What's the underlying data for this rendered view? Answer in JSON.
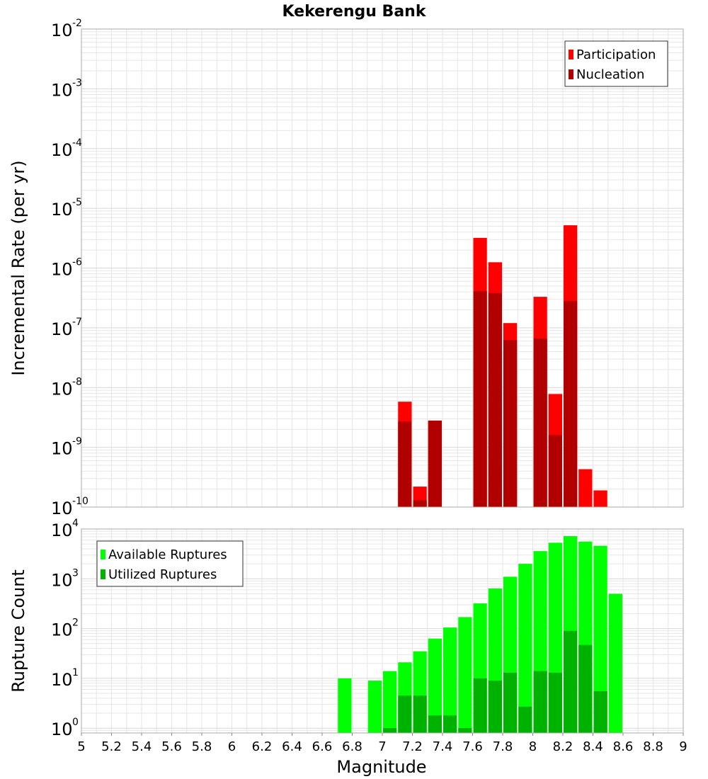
{
  "title": "Kekerengu Bank",
  "colors": {
    "participation": "#ff0000",
    "nucleation": "#b20000",
    "available": "#00ff00",
    "utilized": "#00b200",
    "grid": "#e6e6e6",
    "plot_border": "#aaaaaa"
  },
  "chart_data": [
    {
      "type": "bar",
      "panel": "top",
      "title": "Kekerengu Bank",
      "xlabel": "Magnitude",
      "ylabel": "Incremental Rate (per yr)",
      "yscale": "log",
      "xlim": [
        5,
        9
      ],
      "ylim": [
        1e-10,
        0.01
      ],
      "bar_width": 0.1,
      "legend_position": "top-right",
      "ytick_exponents": [
        -2,
        -3,
        -4,
        -5,
        -6,
        -7,
        -8,
        -9,
        -10
      ],
      "series": [
        {
          "name": "Participation",
          "color": "#ff0000",
          "points": [
            {
              "x": 7.15,
              "y": 5.8e-09
            },
            {
              "x": 7.25,
              "y": 2.2e-10
            },
            {
              "x": 7.35,
              "y": 2.8e-09
            },
            {
              "x": 7.65,
              "y": 3.2e-06
            },
            {
              "x": 7.75,
              "y": 1.25e-06
            },
            {
              "x": 7.85,
              "y": 1.2e-07
            },
            {
              "x": 8.05,
              "y": 3.3e-07
            },
            {
              "x": 8.15,
              "y": 7.8e-09
            },
            {
              "x": 8.25,
              "y": 5.2e-06
            },
            {
              "x": 8.35,
              "y": 4.3e-10
            },
            {
              "x": 8.45,
              "y": 1.9e-10
            }
          ]
        },
        {
          "name": "Nucleation",
          "color": "#b20000",
          "points": [
            {
              "x": 7.15,
              "y": 2.7e-09
            },
            {
              "x": 7.25,
              "y": 1.3e-10
            },
            {
              "x": 7.35,
              "y": 2.8e-09
            },
            {
              "x": 7.65,
              "y": 4.1e-07
            },
            {
              "x": 7.75,
              "y": 3.8e-07
            },
            {
              "x": 7.85,
              "y": 6.2e-08
            },
            {
              "x": 8.05,
              "y": 6.6e-08
            },
            {
              "x": 8.15,
              "y": 1.6e-09
            },
            {
              "x": 8.25,
              "y": 2.8e-07
            }
          ]
        }
      ]
    },
    {
      "type": "bar",
      "panel": "bottom",
      "xlabel": "Magnitude",
      "ylabel": "Rupture Count",
      "yscale": "log",
      "xlim": [
        5,
        9
      ],
      "ylim": [
        0.8,
        10000
      ],
      "bar_width": 0.1,
      "legend_position": "top-left",
      "ytick_exponents": [
        4,
        3,
        2,
        1,
        0
      ],
      "x_ticks": [
        "5",
        "5.2",
        "5.4",
        "5.6",
        "5.8",
        "6",
        "6.2",
        "6.4",
        "6.6",
        "6.8",
        "7",
        "7.2",
        "7.4",
        "7.6",
        "7.8",
        "8",
        "8.2",
        "8.4",
        "8.6",
        "8.8",
        "9"
      ],
      "series": [
        {
          "name": "Available Ruptures",
          "color": "#00ff00",
          "points": [
            {
              "x": 6.75,
              "y": 10
            },
            {
              "x": 6.95,
              "y": 9
            },
            {
              "x": 7.05,
              "y": 14
            },
            {
              "x": 7.15,
              "y": 21
            },
            {
              "x": 7.25,
              "y": 35
            },
            {
              "x": 7.35,
              "y": 63
            },
            {
              "x": 7.45,
              "y": 105
            },
            {
              "x": 7.55,
              "y": 170
            },
            {
              "x": 7.65,
              "y": 320
            },
            {
              "x": 7.75,
              "y": 640
            },
            {
              "x": 7.85,
              "y": 1100
            },
            {
              "x": 7.95,
              "y": 2000
            },
            {
              "x": 8.05,
              "y": 3600
            },
            {
              "x": 8.15,
              "y": 5300
            },
            {
              "x": 8.25,
              "y": 7200
            },
            {
              "x": 8.35,
              "y": 5600
            },
            {
              "x": 8.45,
              "y": 4600
            },
            {
              "x": 8.55,
              "y": 500
            }
          ]
        },
        {
          "name": "Utilized Ruptures",
          "color": "#00b200",
          "points": [
            {
              "x": 7.05,
              "y": 1
            },
            {
              "x": 7.15,
              "y": 4.5
            },
            {
              "x": 7.25,
              "y": 4.5
            },
            {
              "x": 7.35,
              "y": 1.8
            },
            {
              "x": 7.45,
              "y": 1.8
            },
            {
              "x": 7.55,
              "y": 1
            },
            {
              "x": 7.65,
              "y": 10
            },
            {
              "x": 7.75,
              "y": 9
            },
            {
              "x": 7.85,
              "y": 13
            },
            {
              "x": 7.95,
              "y": 2.7
            },
            {
              "x": 8.05,
              "y": 14
            },
            {
              "x": 8.15,
              "y": 13
            },
            {
              "x": 8.25,
              "y": 90
            },
            {
              "x": 8.35,
              "y": 47
            },
            {
              "x": 8.45,
              "y": 5.5
            }
          ]
        }
      ]
    }
  ]
}
